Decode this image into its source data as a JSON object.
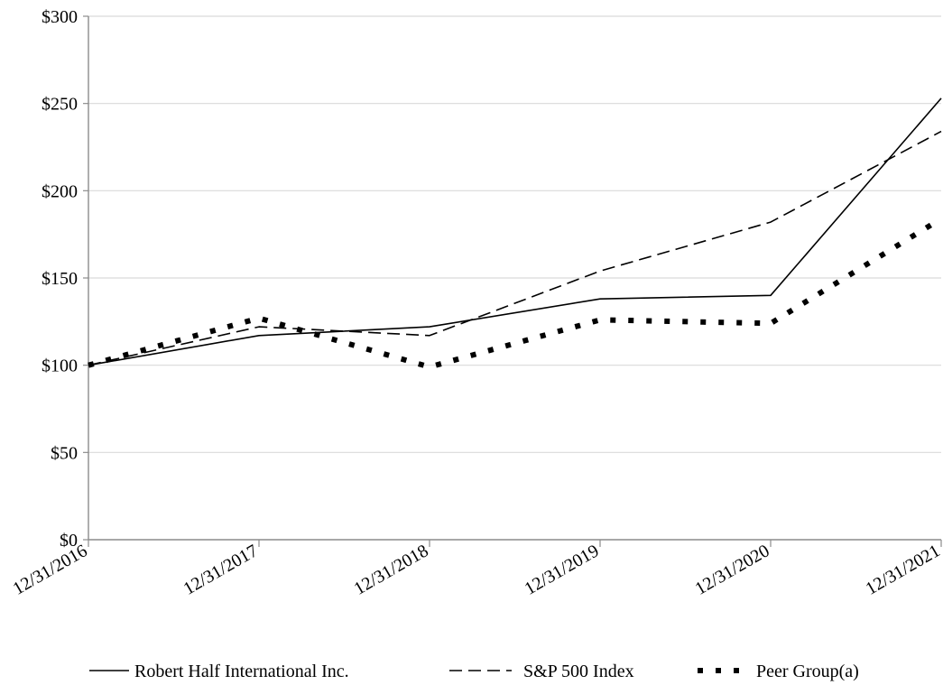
{
  "chart_data": {
    "type": "line",
    "title": "",
    "xlabel": "",
    "ylabel": "",
    "categories": [
      "12/31/2016",
      "12/31/2017",
      "12/31/2018",
      "12/31/2019",
      "12/31/2020",
      "12/31/2021"
    ],
    "ylim": [
      0,
      300
    ],
    "yticks": [
      0,
      50,
      100,
      150,
      200,
      250,
      300
    ],
    "ytick_labels": [
      "$0",
      "$50",
      "$100",
      "$150",
      "$200",
      "$250",
      "$300"
    ],
    "grid": "horizontal",
    "legend_position": "bottom",
    "series": [
      {
        "name": "Robert Half International Inc.",
        "style": "solid",
        "color": "#000000",
        "values": [
          100,
          117,
          122,
          138,
          140,
          253
        ]
      },
      {
        "name": "S&P 500 Index",
        "style": "dashed",
        "color": "#000000",
        "values": [
          100,
          122,
          117,
          154,
          182,
          234
        ]
      },
      {
        "name": "Peer Group(a)",
        "style": "dotted",
        "color": "#000000",
        "values": [
          100,
          127,
          99,
          126,
          124,
          184
        ]
      }
    ]
  }
}
